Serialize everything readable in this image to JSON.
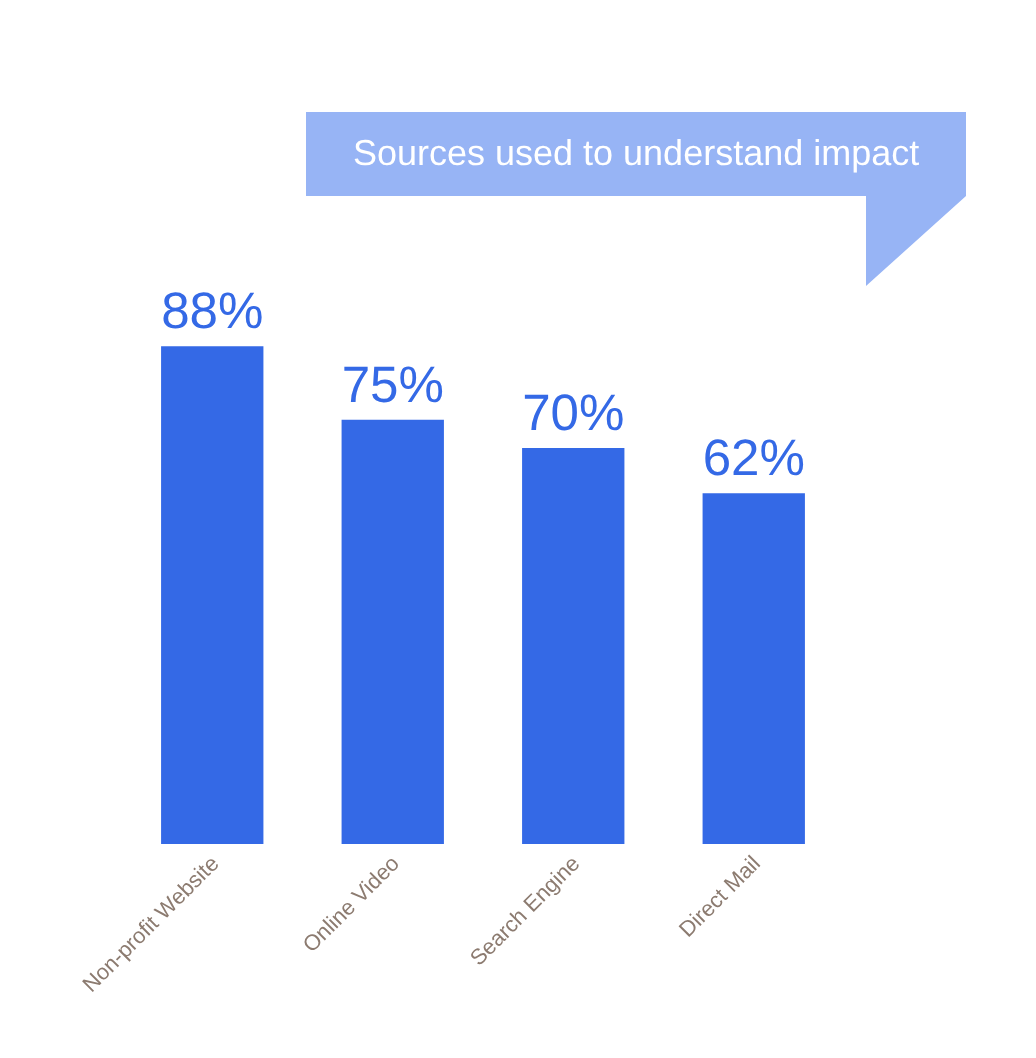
{
  "chart_data": {
    "type": "bar",
    "title": "Sources used to understand impact",
    "categories": [
      "Non-profit Website",
      "Online Video",
      "Search Engine",
      "Direct Mail"
    ],
    "values": [
      88,
      75,
      70,
      62
    ],
    "value_labels": [
      "88%",
      "75%",
      "70%",
      "62%"
    ],
    "color": "#3469e6",
    "tick_labels": "x"
  }
}
